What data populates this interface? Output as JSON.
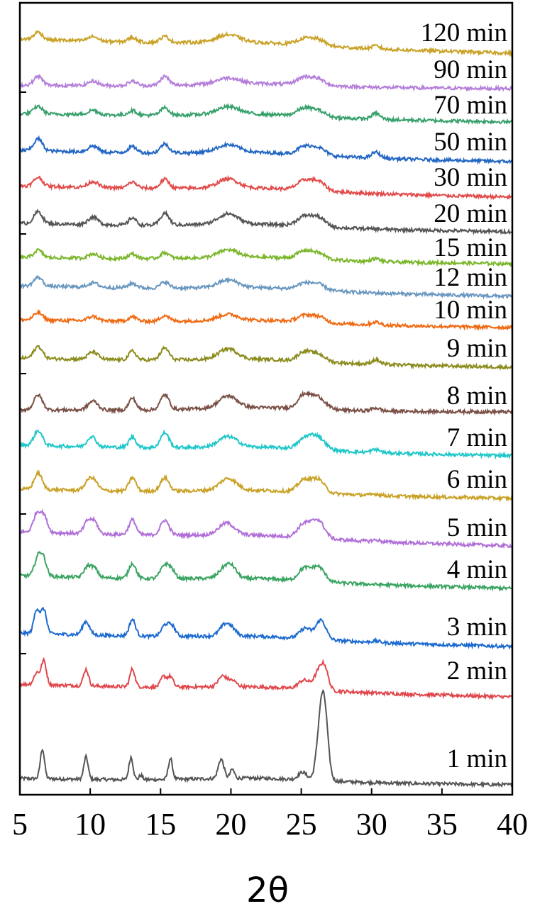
{
  "chart_data": {
    "type": "line",
    "subtype": "stacked-offset XRD patterns",
    "title": "",
    "xlabel": "2θ",
    "ylabel": "",
    "xlim": [
      5,
      40
    ],
    "x_ticks": [
      "5",
      "10",
      "15",
      "20",
      "25",
      "30",
      "35",
      "40"
    ],
    "y_ticks_labeled": false,
    "grid": false,
    "legend": "none (series labelled at right)",
    "peak_positions_2theta": [
      6.3,
      9.8,
      13.0,
      15.3,
      19.8,
      25.3,
      26.2,
      30.3
    ],
    "series": [
      {
        "name": "1 min",
        "color": "#545454",
        "baseline": 1,
        "peaks": [
          [
            6.6,
            20,
            0.15
          ],
          [
            9.7,
            15,
            0.15
          ],
          [
            12.9,
            15,
            0.15
          ],
          [
            13.6,
            3,
            0.12
          ],
          [
            15.7,
            14,
            0.15
          ],
          [
            19.3,
            13,
            0.2
          ],
          [
            20.1,
            6,
            0.15
          ],
          [
            25.1,
            5,
            0.3
          ],
          [
            26.4,
            40,
            0.28
          ],
          [
            26.7,
            30,
            0.25
          ]
        ]
      },
      {
        "name": "2 min",
        "color": "#e0474c",
        "baseline": 2,
        "peaks": [
          [
            6.2,
            8,
            0.2
          ],
          [
            6.7,
            16,
            0.18
          ],
          [
            9.7,
            11,
            0.18
          ],
          [
            13.0,
            12,
            0.18
          ],
          [
            15.2,
            7,
            0.2
          ],
          [
            15.7,
            7,
            0.2
          ],
          [
            19.4,
            7,
            0.3
          ],
          [
            20.1,
            4,
            0.3
          ],
          [
            25.2,
            6,
            0.4
          ],
          [
            26.3,
            13,
            0.35
          ],
          [
            26.7,
            10,
            0.25
          ]
        ]
      },
      {
        "name": "3 min",
        "color": "#1c6bd1",
        "baseline": 3,
        "peaks": [
          [
            6.2,
            16,
            0.2
          ],
          [
            6.7,
            16,
            0.2
          ],
          [
            9.7,
            9,
            0.25
          ],
          [
            13.0,
            11,
            0.22
          ],
          [
            15.3,
            7,
            0.25
          ],
          [
            15.8,
            7,
            0.25
          ],
          [
            19.5,
            6,
            0.35
          ],
          [
            20.0,
            5,
            0.35
          ],
          [
            25.3,
            7,
            0.4
          ],
          [
            26.4,
            13,
            0.35
          ],
          [
            30.3,
            1,
            0.3
          ]
        ]
      },
      {
        "name": "4 min",
        "color": "#3aa462",
        "baseline": 4,
        "peaks": [
          [
            6.3,
            13,
            0.25
          ],
          [
            6.7,
            10,
            0.22
          ],
          [
            9.8,
            7,
            0.25
          ],
          [
            10.3,
            6,
            0.25
          ],
          [
            13.0,
            10,
            0.25
          ],
          [
            15.3,
            9,
            0.3
          ],
          [
            15.8,
            5,
            0.25
          ],
          [
            19.6,
            7,
            0.45
          ],
          [
            20.1,
            5,
            0.35
          ],
          [
            25.2,
            8,
            0.4
          ],
          [
            26.2,
            10,
            0.45
          ]
        ]
      },
      {
        "name": "5 min",
        "color": "#b070d8",
        "baseline": 5,
        "peaks": [
          [
            6.2,
            12,
            0.25
          ],
          [
            6.7,
            11,
            0.25
          ],
          [
            9.8,
            8,
            0.25
          ],
          [
            10.3,
            8,
            0.25
          ],
          [
            13.0,
            10,
            0.25
          ],
          [
            15.3,
            10,
            0.3
          ],
          [
            19.7,
            8,
            0.55
          ],
          [
            25.2,
            9,
            0.45
          ],
          [
            26.2,
            12,
            0.45
          ],
          [
            30.3,
            1,
            0.3
          ]
        ]
      },
      {
        "name": "6 min",
        "color": "#c9a227",
        "baseline": 6,
        "peaks": [
          [
            6.3,
            11,
            0.28
          ],
          [
            9.9,
            6,
            0.3
          ],
          [
            10.3,
            5,
            0.3
          ],
          [
            13.0,
            9,
            0.25
          ],
          [
            15.3,
            9,
            0.3
          ],
          [
            19.8,
            8,
            0.6
          ],
          [
            25.2,
            8,
            0.45
          ],
          [
            26.2,
            9,
            0.45
          ],
          [
            30.3,
            1,
            0.3
          ]
        ]
      },
      {
        "name": "7 min",
        "color": "#20c7c9",
        "baseline": 7,
        "peaks": [
          [
            6.3,
            10,
            0.3
          ],
          [
            10.1,
            7,
            0.3
          ],
          [
            13.0,
            7,
            0.25
          ],
          [
            15.3,
            10,
            0.3
          ],
          [
            19.8,
            7,
            0.65
          ],
          [
            25.3,
            7,
            0.5
          ],
          [
            26.2,
            8,
            0.5
          ],
          [
            30.3,
            2,
            0.3
          ]
        ]
      },
      {
        "name": "8 min",
        "color": "#7a5046",
        "baseline": 8,
        "peaks": [
          [
            6.3,
            10,
            0.3
          ],
          [
            10.2,
            6,
            0.35
          ],
          [
            13.0,
            8,
            0.25
          ],
          [
            15.3,
            10,
            0.3
          ],
          [
            19.8,
            8,
            0.65
          ],
          [
            25.2,
            9,
            0.45
          ],
          [
            26.2,
            8,
            0.5
          ],
          [
            30.3,
            2,
            0.3
          ]
        ]
      },
      {
        "name": "9 min",
        "color": "#8c8c1e",
        "baseline": 9,
        "peaks": [
          [
            6.3,
            8,
            0.3
          ],
          [
            10.2,
            5,
            0.35
          ],
          [
            13.0,
            6,
            0.25
          ],
          [
            15.3,
            8,
            0.3
          ],
          [
            19.8,
            7,
            0.65
          ],
          [
            25.2,
            6,
            0.45
          ],
          [
            26.2,
            5,
            0.5
          ],
          [
            30.3,
            3,
            0.3
          ]
        ]
      },
      {
        "name": "10 min",
        "color": "#ef6a12",
        "baseline": 10,
        "peaks": [
          [
            6.3,
            5,
            0.3
          ],
          [
            10.2,
            3,
            0.35
          ],
          [
            13.0,
            3,
            0.3
          ],
          [
            15.3,
            4,
            0.3
          ],
          [
            19.8,
            4,
            0.7
          ],
          [
            25.2,
            4,
            0.5
          ],
          [
            26.2,
            4,
            0.5
          ],
          [
            30.3,
            2,
            0.3
          ]
        ]
      },
      {
        "name": "12 min",
        "color": "#6a97c0",
        "baseline": 11,
        "peaks": [
          [
            6.3,
            6,
            0.3
          ],
          [
            10.2,
            3,
            0.35
          ],
          [
            13.0,
            3,
            0.3
          ],
          [
            15.3,
            4,
            0.3
          ],
          [
            19.8,
            5,
            0.7
          ],
          [
            25.2,
            4,
            0.5
          ],
          [
            26.2,
            4,
            0.5
          ]
        ]
      },
      {
        "name": "15 min",
        "color": "#7ab62a",
        "baseline": 12,
        "peaks": [
          [
            6.3,
            5,
            0.3
          ],
          [
            10.2,
            3,
            0.35
          ],
          [
            13.0,
            3,
            0.3
          ],
          [
            15.3,
            4,
            0.3
          ],
          [
            19.8,
            5,
            0.7
          ],
          [
            25.2,
            5,
            0.5
          ],
          [
            26.2,
            4,
            0.5
          ],
          [
            30.3,
            2,
            0.3
          ]
        ]
      },
      {
        "name": "20 min",
        "color": "#555555",
        "baseline": 13,
        "peaks": [
          [
            6.3,
            8,
            0.3
          ],
          [
            10.2,
            5,
            0.35
          ],
          [
            13.0,
            5,
            0.25
          ],
          [
            15.3,
            8,
            0.3
          ],
          [
            19.8,
            7,
            0.7
          ],
          [
            25.2,
            6,
            0.5
          ],
          [
            26.2,
            6,
            0.5
          ]
        ]
      },
      {
        "name": "30 min",
        "color": "#e24a4a",
        "baseline": 14,
        "peaks": [
          [
            6.3,
            6,
            0.3
          ],
          [
            10.2,
            4,
            0.35
          ],
          [
            13.0,
            4,
            0.3
          ],
          [
            15.3,
            6,
            0.3
          ],
          [
            19.8,
            6,
            0.7
          ],
          [
            25.2,
            6,
            0.5
          ],
          [
            26.2,
            6,
            0.5
          ]
        ]
      },
      {
        "name": "50 min",
        "color": "#2266c4",
        "baseline": 15,
        "peaks": [
          [
            6.3,
            8,
            0.3
          ],
          [
            10.2,
            4,
            0.35
          ],
          [
            13.0,
            4,
            0.3
          ],
          [
            15.3,
            6,
            0.3
          ],
          [
            19.8,
            5,
            0.8
          ],
          [
            25.2,
            5,
            0.5
          ],
          [
            26.2,
            5,
            0.5
          ],
          [
            30.3,
            4,
            0.3
          ]
        ]
      },
      {
        "name": "70 min",
        "color": "#37a06b",
        "baseline": 16,
        "peaks": [
          [
            6.3,
            5,
            0.3
          ],
          [
            10.2,
            3,
            0.35
          ],
          [
            13.0,
            3,
            0.3
          ],
          [
            15.3,
            5,
            0.3
          ],
          [
            19.8,
            5,
            0.8
          ],
          [
            25.2,
            5,
            0.5
          ],
          [
            26.2,
            4,
            0.5
          ],
          [
            30.3,
            4,
            0.3
          ]
        ]
      },
      {
        "name": "90 min",
        "color": "#b47ed9",
        "baseline": 17,
        "peaks": [
          [
            6.3,
            6,
            0.3
          ],
          [
            10.2,
            3,
            0.35
          ],
          [
            13.0,
            3,
            0.3
          ],
          [
            15.3,
            6,
            0.3
          ],
          [
            19.8,
            4,
            0.8
          ],
          [
            25.2,
            5,
            0.5
          ],
          [
            26.2,
            4,
            0.5
          ]
        ]
      },
      {
        "name": "120 min",
        "color": "#c9a227",
        "baseline": 18,
        "peaks": [
          [
            6.3,
            5,
            0.3
          ],
          [
            10.2,
            3,
            0.35
          ],
          [
            13.0,
            3,
            0.3
          ],
          [
            15.3,
            4,
            0.3
          ],
          [
            19.8,
            5,
            0.8
          ],
          [
            25.2,
            4,
            0.5
          ],
          [
            26.2,
            4,
            0.5
          ],
          [
            30.3,
            2,
            0.3
          ]
        ]
      }
    ]
  }
}
